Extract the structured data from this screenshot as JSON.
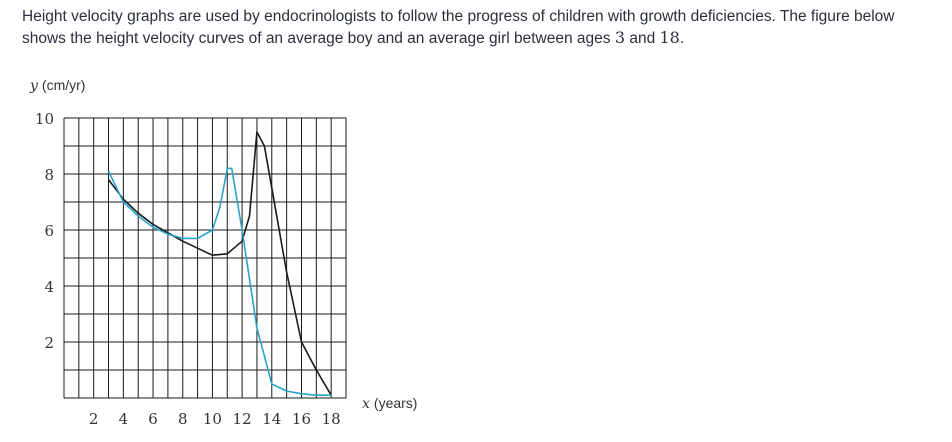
{
  "intro": {
    "text_part1": "Height velocity graphs are used by endocrinologists to follow the progress of children with growth deficiencies. The figure below shows the height velocity curves of an average boy and an average girl between ages ",
    "age_start": "3",
    "text_part2": " and ",
    "age_end": "18",
    "text_part3": "."
  },
  "colors": {
    "boy": "#1a1a1a",
    "girl": "#29a3cc",
    "grid": "#1a1a1a"
  },
  "chart_data": {
    "type": "line",
    "ylabel_var": "y",
    "ylabel_unit": "(cm/yr)",
    "xlabel_var": "x",
    "xlabel_unit": "(years)",
    "xlim": [
      0,
      19
    ],
    "ylim": [
      0,
      10
    ],
    "x_ticks": [
      2,
      4,
      6,
      8,
      10,
      12,
      14,
      16,
      18
    ],
    "y_ticks": [
      2,
      4,
      6,
      8,
      10
    ],
    "grid": true,
    "series": [
      {
        "color": "#1a1a1a",
        "x": [
          3,
          4,
          5,
          6,
          7,
          8,
          9,
          10,
          11,
          12,
          12.5,
          13,
          13.5,
          14,
          15,
          16,
          17,
          18
        ],
        "y": [
          7.8,
          7.1,
          6.6,
          6.2,
          5.9,
          5.6,
          5.35,
          5.1,
          5.15,
          5.6,
          6.5,
          9.5,
          9.0,
          7.5,
          4.5,
          2.0,
          1.0,
          0.1
        ]
      },
      {
        "color": "#29a3cc",
        "x": [
          3,
          4,
          5,
          6,
          7,
          8,
          9,
          10,
          10.5,
          11,
          11.3,
          12,
          13,
          13.5,
          14,
          15,
          16,
          17,
          18
        ],
        "y": [
          8.1,
          7.0,
          6.5,
          6.1,
          5.85,
          5.7,
          5.7,
          6.0,
          6.8,
          8.2,
          8.2,
          6.0,
          2.5,
          1.5,
          0.5,
          0.25,
          0.15,
          0.1,
          0.1
        ]
      }
    ]
  }
}
